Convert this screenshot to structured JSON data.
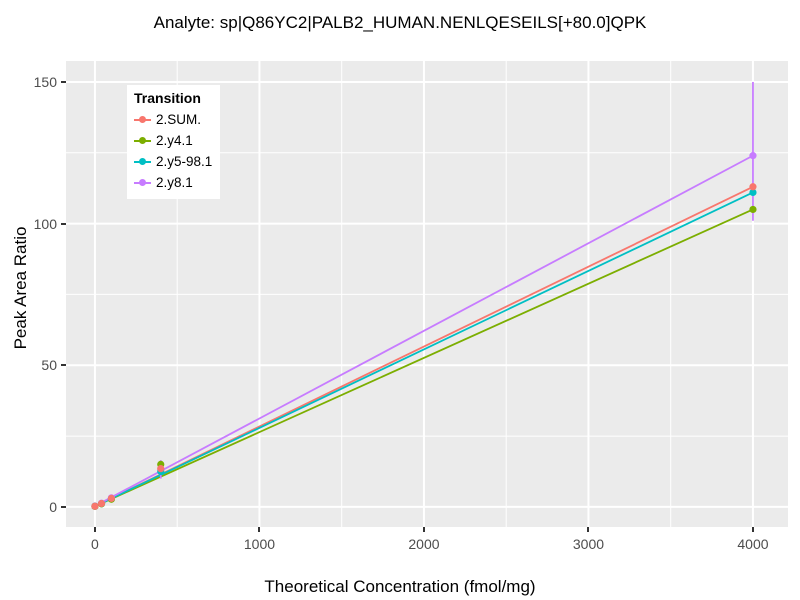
{
  "chart_data": {
    "type": "line",
    "title": "Analyte: sp|Q86YC2|PALB2_HUMAN.NENLQESEILS[+80.0]QPK",
    "xlabel": "Theoretical Concentration (fmol/mg)",
    "ylabel": "Peak Area Ratio",
    "legend_title": "Transition",
    "legend_position": "top-left-inside",
    "grid": true,
    "panel_bg": "#EBEBEB",
    "grid_color": "#FFFFFF",
    "axis_text_color": "#4D4D4D",
    "xlim": [
      -176,
      4213
    ],
    "ylim": [
      -7.1,
      157.4
    ],
    "x_ticks": [
      0,
      1000,
      2000,
      3000,
      4000
    ],
    "y_ticks": [
      0,
      50,
      100,
      150
    ],
    "x_minor_ticks": [
      500,
      1500,
      2500,
      3500
    ],
    "y_minor_ticks": [
      25,
      75,
      125
    ],
    "series": [
      {
        "name": "2.SUM.",
        "color": "#F8766D",
        "fit_line": {
          "x1": 0,
          "y1": 0.2,
          "x2": 4000,
          "y2": 113
        },
        "points": {
          "x": [
            0,
            40,
            100,
            400,
            4000
          ],
          "y": [
            0.2,
            1.2,
            3.0,
            13.5,
            113
          ]
        }
      },
      {
        "name": "2.y4.1",
        "color": "#7CAE00",
        "fit_line": {
          "x1": 0,
          "y1": 0.2,
          "x2": 4000,
          "y2": 105
        },
        "points": {
          "x": [
            0,
            40,
            100,
            400,
            4000
          ],
          "y": [
            0.2,
            1.1,
            2.7,
            15.0,
            105
          ]
        }
      },
      {
        "name": "2.y5-98.1",
        "color": "#00BFC4",
        "fit_line": {
          "x1": 0,
          "y1": 0.2,
          "x2": 4000,
          "y2": 111
        },
        "points": {
          "x": [
            0,
            40,
            100,
            400,
            4000
          ],
          "y": [
            0.2,
            1.1,
            2.8,
            12.5,
            111
          ]
        }
      },
      {
        "name": "2.y8.1",
        "color": "#C77CFF",
        "fit_line": {
          "x1": 0,
          "y1": 0.3,
          "x2": 4000,
          "y2": 124
        },
        "points": {
          "x": [
            0,
            40,
            100,
            400,
            4000
          ],
          "y": [
            0.3,
            1.3,
            3.2,
            13.0,
            124
          ]
        }
      }
    ],
    "error_bars": [
      {
        "series": "2.y8.1",
        "x": 400,
        "low": 10.0,
        "high": 16.5
      },
      {
        "series": "2.y8.1",
        "x": 4000,
        "low": 101.0,
        "high": 150.0
      }
    ]
  }
}
